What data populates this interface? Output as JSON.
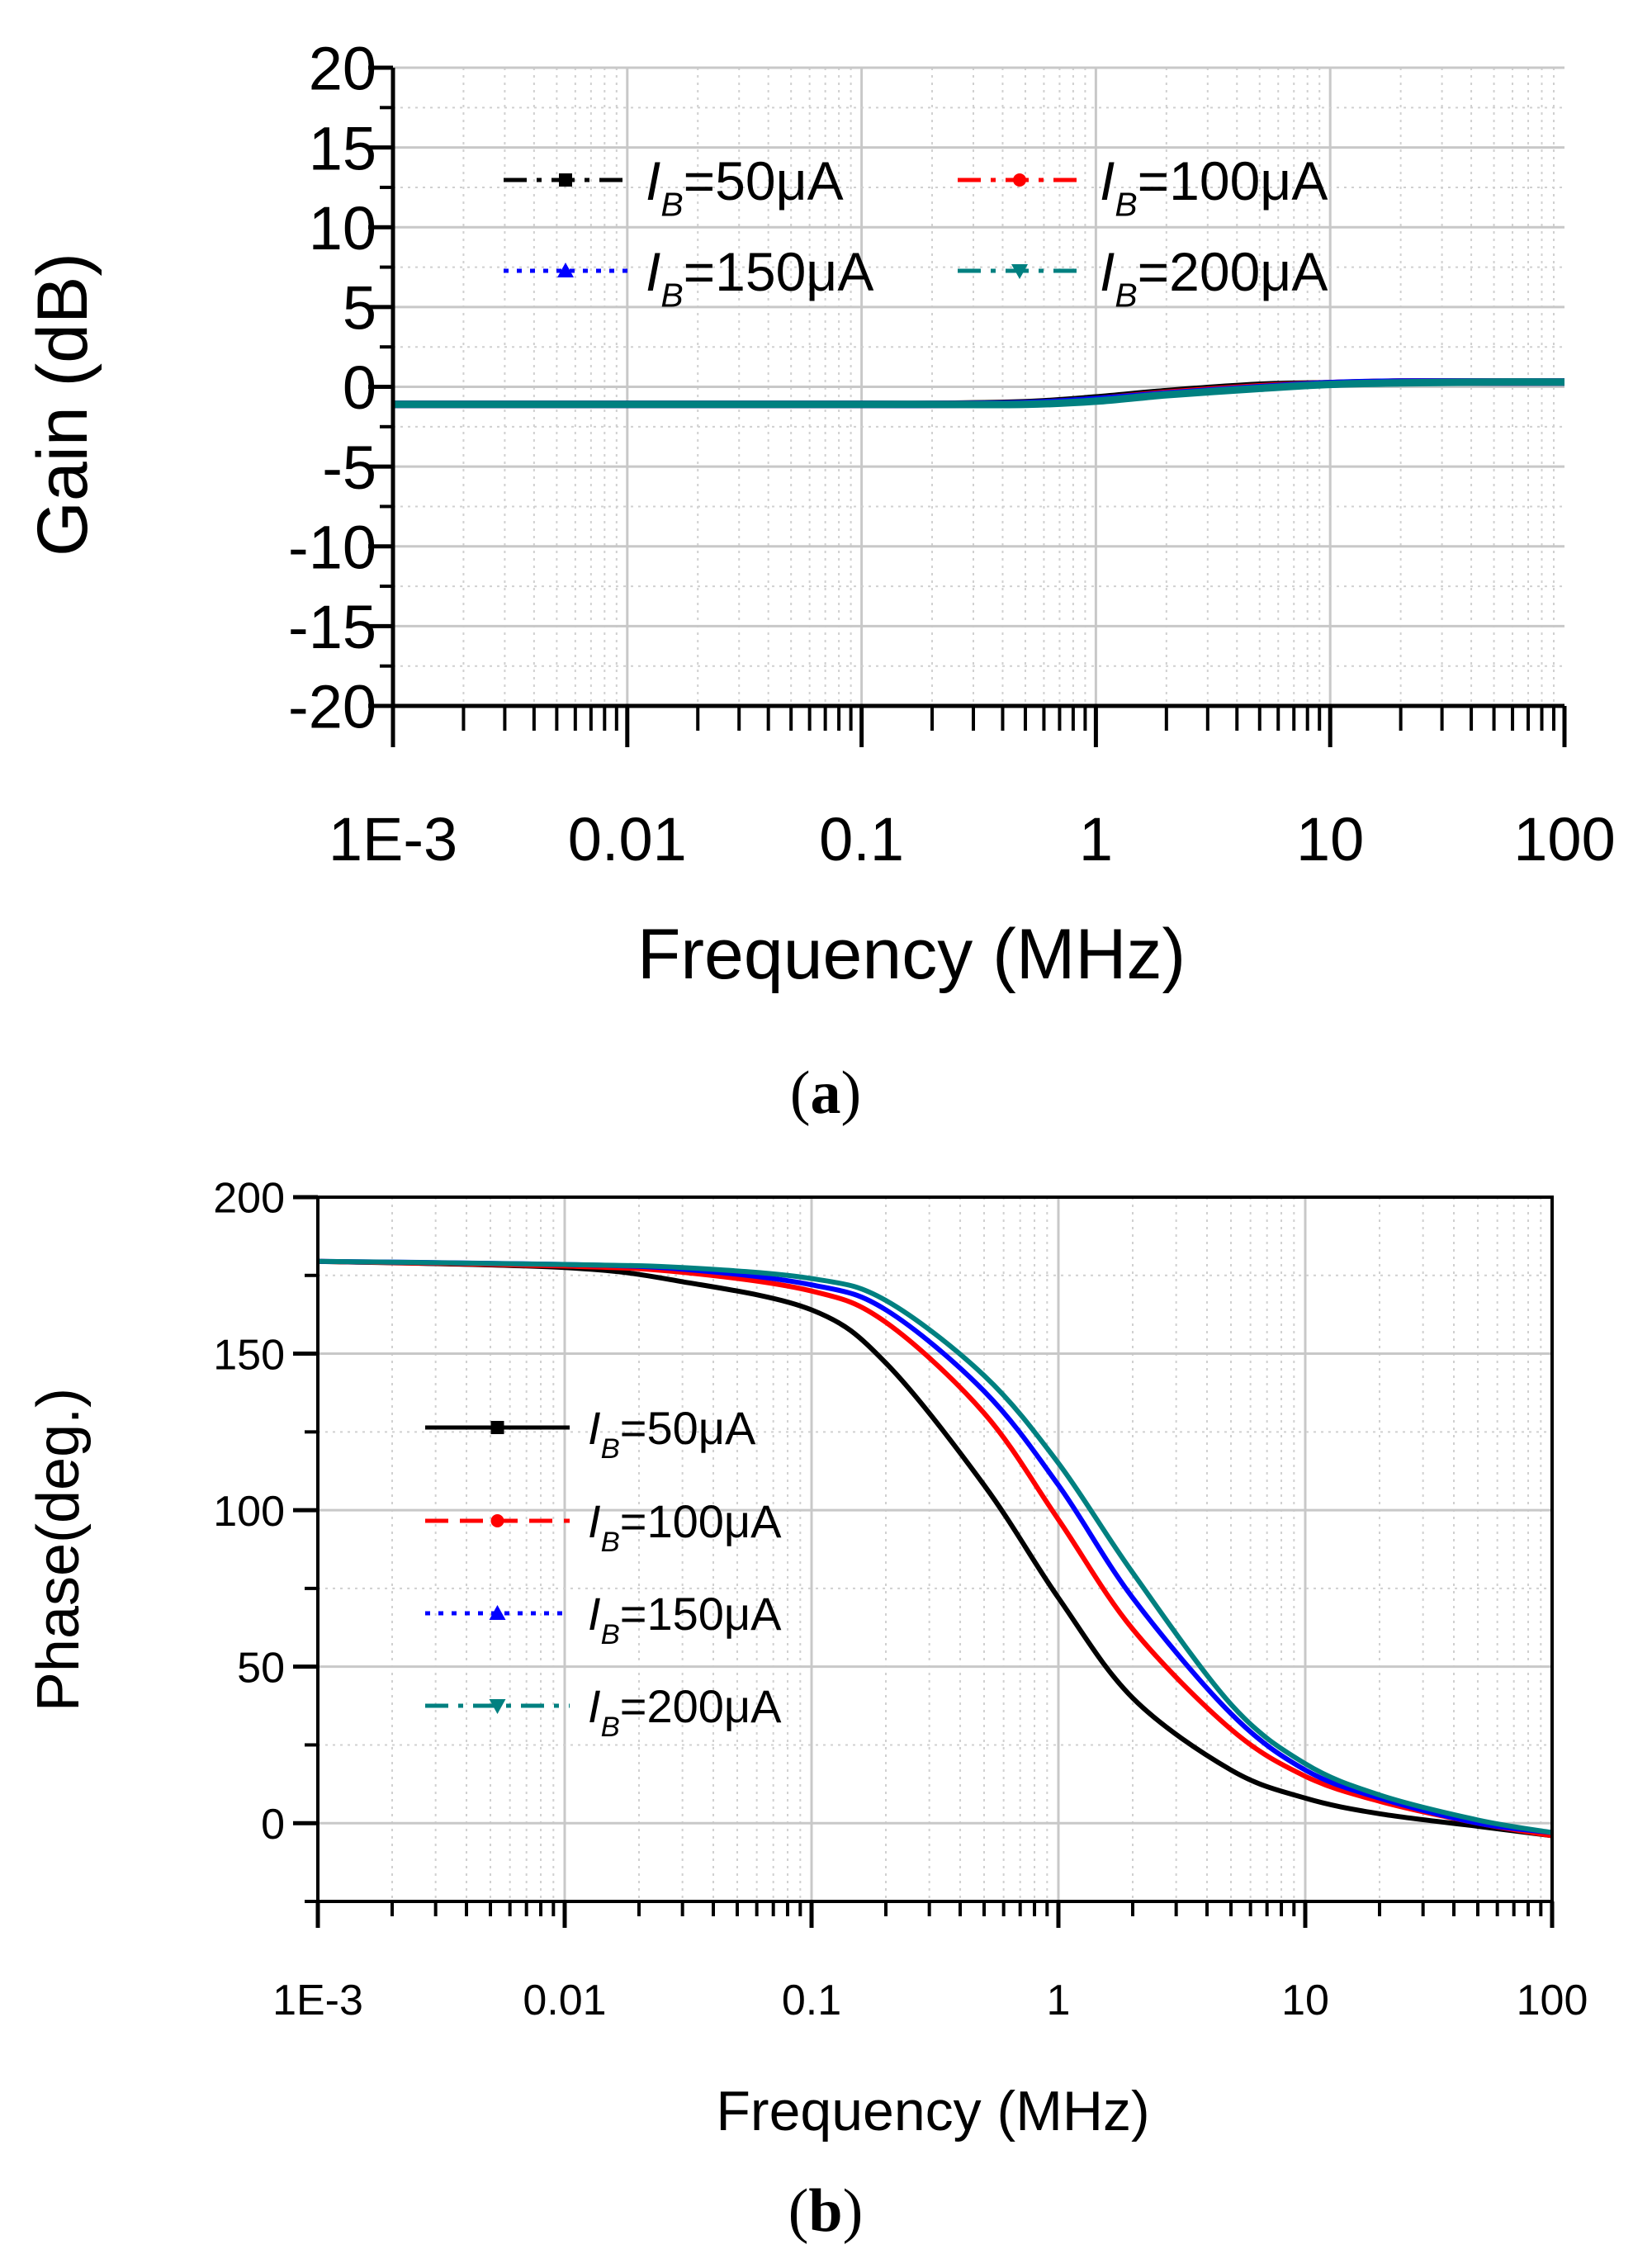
{
  "chart_data": [
    {
      "id": "a",
      "type": "line",
      "caption": "a",
      "xlabel": "Frequency (MHz)",
      "ylabel": "Gain (dB)",
      "xscale": "log",
      "xlim": [
        0.001,
        100
      ],
      "ylim": [
        -20,
        20
      ],
      "xticks": [
        {
          "v": 0.001,
          "label": "1E-3"
        },
        {
          "v": 0.01,
          "label": "0.01"
        },
        {
          "v": 0.1,
          "label": "0.1"
        },
        {
          "v": 1,
          "label": "1"
        },
        {
          "v": 10,
          "label": "10"
        },
        {
          "v": 100,
          "label": "100"
        }
      ],
      "yticks": [
        {
          "v": 20,
          "label": "20"
        },
        {
          "v": 15,
          "label": "15"
        },
        {
          "v": 10,
          "label": "10"
        },
        {
          "v": 5,
          "label": "5"
        },
        {
          "v": 0,
          "label": "0"
        },
        {
          "v": -5,
          "label": "-5"
        },
        {
          "v": -10,
          "label": "-10"
        },
        {
          "v": -15,
          "label": "-15"
        },
        {
          "v": -20,
          "label": "-20"
        }
      ],
      "grid": true,
      "legend_position": "top",
      "x": [
        0.001,
        0.01,
        0.1,
        0.2,
        0.5,
        1,
        2,
        5,
        10,
        20,
        50,
        100
      ],
      "series": [
        {
          "key": "b50",
          "name_main": "I",
          "name_sub": "B",
          "name_rest": "=50μA",
          "color": "#000000",
          "dash": "dashdot",
          "marker": "square",
          "values": [
            -1.1,
            -1.1,
            -1.1,
            -1.1,
            -1.0,
            -0.7,
            -0.3,
            0.1,
            0.2,
            0.3,
            0.3,
            0.3
          ]
        },
        {
          "key": "b100",
          "name_main": "I",
          "name_sub": "B",
          "name_rest": "=100μA",
          "color": "#ff0000",
          "dash": "dashdot",
          "marker": "circle",
          "values": [
            -1.1,
            -1.1,
            -1.1,
            -1.1,
            -1.05,
            -0.8,
            -0.4,
            0.0,
            0.2,
            0.3,
            0.3,
            0.3
          ]
        },
        {
          "key": "b150",
          "name_main": "I",
          "name_sub": "B",
          "name_rest": "=150μA",
          "color": "#0000ff",
          "dash": "dot",
          "marker": "triangle-up",
          "values": [
            -1.1,
            -1.1,
            -1.1,
            -1.1,
            -1.05,
            -0.8,
            -0.45,
            -0.05,
            0.2,
            0.3,
            0.3,
            0.3
          ]
        },
        {
          "key": "b200",
          "name_main": "I",
          "name_sub": "B",
          "name_rest": "=200μA",
          "color": "#008080",
          "dash": "dashdot",
          "marker": "triangle-down",
          "values": [
            -1.1,
            -1.1,
            -1.1,
            -1.1,
            -1.1,
            -0.9,
            -0.5,
            -0.1,
            0.15,
            0.25,
            0.3,
            0.3
          ]
        }
      ]
    },
    {
      "id": "b",
      "type": "line",
      "caption": "b",
      "xlabel": "Frequency (MHz)",
      "ylabel": "Phase(deg.)",
      "xscale": "log",
      "xlim": [
        0.001,
        100
      ],
      "ylim": [
        -25,
        200
      ],
      "xticks": [
        {
          "v": 0.001,
          "label": "1E-3"
        },
        {
          "v": 0.01,
          "label": "0.01"
        },
        {
          "v": 0.1,
          "label": "0.1"
        },
        {
          "v": 1,
          "label": "1"
        },
        {
          "v": 10,
          "label": "10"
        },
        {
          "v": 100,
          "label": "100"
        }
      ],
      "yticks": [
        {
          "v": 200,
          "label": "200"
        },
        {
          "v": 150,
          "label": "150"
        },
        {
          "v": 100,
          "label": "100"
        },
        {
          "v": 50,
          "label": "50"
        },
        {
          "v": 0,
          "label": "0"
        }
      ],
      "grid": true,
      "legend_position": "center-left",
      "x": [
        0.001,
        0.01,
        0.03,
        0.1,
        0.2,
        0.5,
        1,
        2,
        5,
        10,
        20,
        50,
        100
      ],
      "series": [
        {
          "key": "b50",
          "name_main": "I",
          "name_sub": "B",
          "name_rest": "=50μA",
          "color": "#000000",
          "dash": "solid",
          "marker": "square",
          "values": [
            179.5,
            177.5,
            173,
            164,
            147,
            108,
            72,
            40,
            17,
            8,
            3,
            -1,
            -4
          ]
        },
        {
          "key": "b100",
          "name_main": "I",
          "name_sub": "B",
          "name_rest": "=100μA",
          "color": "#ff0000",
          "dash": "dash",
          "marker": "circle",
          "values": [
            179.5,
            178,
            176,
            170,
            160,
            131,
            97,
            62,
            30,
            15,
            7,
            0,
            -4
          ]
        },
        {
          "key": "b150",
          "name_main": "I",
          "name_sub": "B",
          "name_rest": "=150μA",
          "color": "#0000ff",
          "dash": "dot",
          "marker": "triangle-up",
          "values": [
            179.5,
            178.5,
            177,
            172,
            164,
            138,
            108,
            72,
            35,
            17,
            8,
            0,
            -3
          ]
        },
        {
          "key": "b200",
          "name_main": "I",
          "name_sub": "B",
          "name_rest": "=200μA",
          "color": "#008080",
          "dash": "dashdot",
          "marker": "triangle-down",
          "values": [
            179.5,
            178.5,
            177.5,
            174,
            167,
            143,
            115,
            80,
            38,
            19,
            9,
            1,
            -3
          ]
        }
      ]
    }
  ]
}
